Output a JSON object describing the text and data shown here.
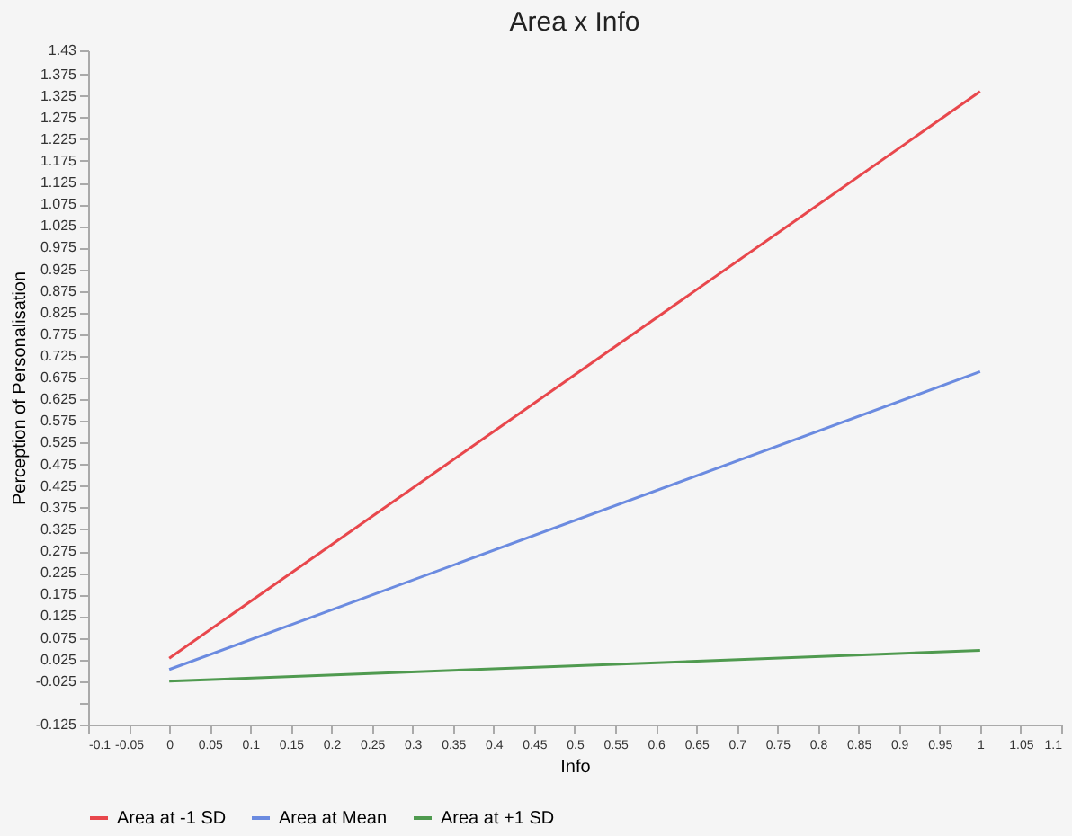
{
  "chart_data": {
    "type": "line",
    "title": "Area x Info",
    "xlabel": "Info",
    "ylabel": "Perception of Personalisation",
    "x": [
      0,
      1
    ],
    "series": [
      {
        "name": "Area at -1 SD",
        "color": "#e8474c",
        "values": [
          0.028,
          1.335
        ]
      },
      {
        "name": "Area at Mean",
        "color": "#6b8be0",
        "values": [
          0.002,
          0.689
        ]
      },
      {
        "name": "Area at +1 SD",
        "color": "#4f9a4f",
        "values": [
          -0.025,
          0.046
        ]
      }
    ],
    "xlim": [
      -0.1,
      1.1
    ],
    "xticks": [
      -0.1,
      -0.05,
      0,
      0.05,
      0.1,
      0.15,
      0.2,
      0.25,
      0.3,
      0.35,
      0.4,
      0.45,
      0.5,
      0.55,
      0.6,
      0.65,
      0.7,
      0.75,
      0.8,
      0.85,
      0.9,
      0.95,
      1,
      1.05,
      1.1
    ],
    "ylim": [
      -0.125,
      1.43
    ],
    "yticks": [
      -0.125,
      {
        "value": -0.075,
        "label": null
      },
      -0.025,
      0.025,
      0.075,
      0.125,
      0.175,
      0.225,
      0.275,
      0.325,
      0.375,
      0.425,
      0.475,
      0.525,
      0.575,
      0.625,
      0.675,
      0.725,
      0.775,
      0.825,
      0.875,
      0.925,
      0.975,
      1.025,
      1.075,
      1.125,
      1.175,
      1.225,
      1.275,
      1.325,
      1.375,
      1.43
    ],
    "grid": false,
    "legend": "bottom",
    "marker": "none",
    "line_style": "solid"
  }
}
